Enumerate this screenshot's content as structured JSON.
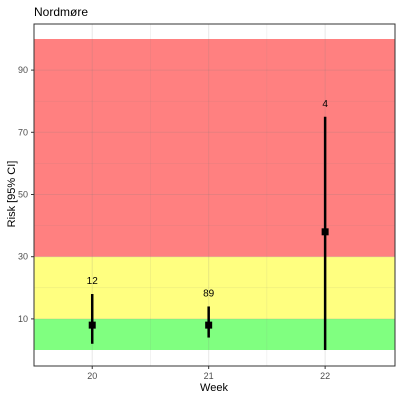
{
  "chart_data": {
    "type": "scatter",
    "title": "Nordmøre",
    "xlabel": "Week",
    "ylabel": "Risk [95% CI]",
    "x_ticks": [
      "20",
      "21",
      "22"
    ],
    "y_ticks": [
      "10",
      "30",
      "50",
      "70",
      "90"
    ],
    "xlim": [
      19.5,
      22.6
    ],
    "ylim": [
      0,
      100
    ],
    "grid": true,
    "bands": [
      {
        "from": 0,
        "to": 10,
        "color": "#80ff80"
      },
      {
        "from": 10,
        "to": 30,
        "color": "#ffff80"
      },
      {
        "from": 30,
        "to": 100,
        "color": "#ff8080"
      }
    ],
    "points": [
      {
        "x": 20,
        "y": 8,
        "low": 2,
        "high": 18,
        "label": "12"
      },
      {
        "x": 21,
        "y": 8,
        "low": 4,
        "high": 14,
        "label": "89"
      },
      {
        "x": 22,
        "y": 38,
        "low": 0,
        "high": 75,
        "label": "4"
      }
    ],
    "colors": {
      "point": "#000000",
      "grid": "#ebebeb",
      "border": "#333333"
    }
  }
}
